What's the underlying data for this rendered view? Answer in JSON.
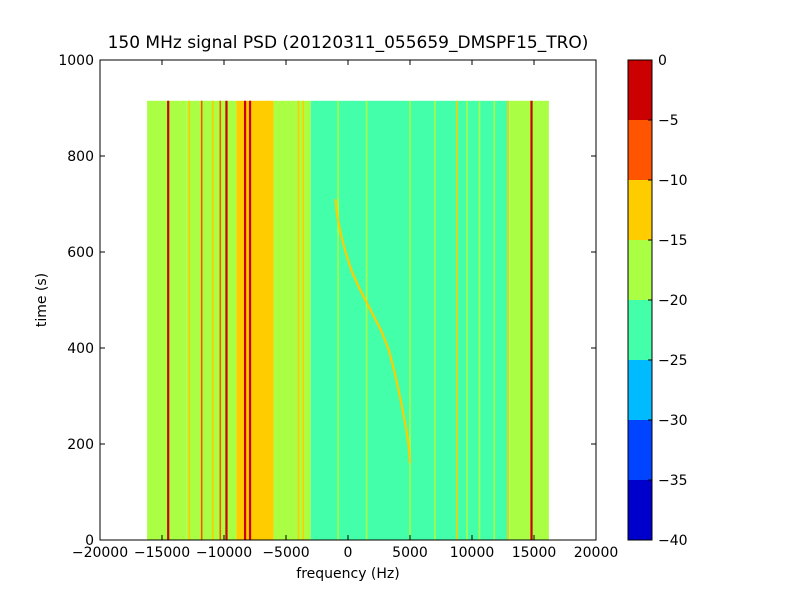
{
  "chart_data": {
    "type": "heatmap",
    "title": "150 MHz signal PSD (20120311_055659_DMSPF15_TRO)",
    "xlabel": "frequency (Hz)",
    "ylabel": "time (s)",
    "xlim": [
      -20000,
      20000
    ],
    "ylim": [
      0,
      1000
    ],
    "x_ticks": [
      -20000,
      -15000,
      -10000,
      -5000,
      0,
      5000,
      10000,
      15000,
      20000
    ],
    "x_tick_labels": [
      "−20000",
      "−15000",
      "−10000",
      "−5000",
      "0",
      "5000",
      "10000",
      "15000",
      "20000"
    ],
    "y_ticks": [
      0,
      200,
      400,
      600,
      800,
      1000
    ],
    "y_tick_labels": [
      "0",
      "200",
      "400",
      "600",
      "800",
      "1000"
    ],
    "data_extent": {
      "x": [
        -16200,
        16200
      ],
      "y": [
        0,
        915
      ]
    },
    "colorbar": {
      "levels": [
        -40,
        -35,
        -30,
        -25,
        -20,
        -15,
        -10,
        -5,
        0
      ],
      "tick_labels": [
        "−40",
        "−35",
        "−30",
        "−25",
        "−20",
        "−15",
        "−10",
        "−5",
        "0"
      ],
      "colors": [
        "#0000cc",
        "#0044ff",
        "#00bbff",
        "#44ffaa",
        "#aaff44",
        "#ffcc00",
        "#ff5500",
        "#cc0000"
      ]
    },
    "background_bands": [
      {
        "x": [
          -16200,
          -13000
        ],
        "level": -20
      },
      {
        "x": [
          -13000,
          -9000
        ],
        "level": -20
      },
      {
        "x": [
          -9000,
          -6000
        ],
        "level": -15
      },
      {
        "x": [
          -6000,
          -3000
        ],
        "level": -20
      },
      {
        "x": [
          -3000,
          13000
        ],
        "level": -25
      },
      {
        "x": [
          13000,
          16200
        ],
        "level": -20
      }
    ],
    "tones": [
      {
        "x": -15600,
        "level": -20
      },
      {
        "x": -14500,
        "level": -5
      },
      {
        "x": -12800,
        "level": -15
      },
      {
        "x": -11800,
        "level": -10
      },
      {
        "x": -10900,
        "level": -15
      },
      {
        "x": -10300,
        "level": -10
      },
      {
        "x": -9800,
        "level": -5
      },
      {
        "x": -8300,
        "level": 0
      },
      {
        "x": -7900,
        "level": -5
      },
      {
        "x": -6500,
        "level": -15
      },
      {
        "x": -4000,
        "level": -15
      },
      {
        "x": -3600,
        "level": -15
      },
      {
        "x": -800,
        "level": -20
      },
      {
        "x": 1500,
        "level": -20
      },
      {
        "x": 5000,
        "level": -20
      },
      {
        "x": 7000,
        "level": -20
      },
      {
        "x": 8800,
        "level": -15
      },
      {
        "x": 9600,
        "level": -20
      },
      {
        "x": 10600,
        "level": -20
      },
      {
        "x": 11800,
        "level": -20
      },
      {
        "x": 12900,
        "level": -15
      },
      {
        "x": 14800,
        "level": -5
      }
    ],
    "doppler_trace": {
      "level": -15,
      "points": [
        [
          -1000,
          710
        ],
        [
          -900,
          680
        ],
        [
          -600,
          640
        ],
        [
          -200,
          600
        ],
        [
          300,
          560
        ],
        [
          900,
          525
        ],
        [
          1500,
          495
        ],
        [
          2100,
          465
        ],
        [
          2700,
          435
        ],
        [
          3300,
          395
        ],
        [
          3800,
          345
        ],
        [
          4300,
          285
        ],
        [
          4700,
          230
        ],
        [
          4900,
          195
        ],
        [
          5000,
          160
        ]
      ]
    }
  }
}
